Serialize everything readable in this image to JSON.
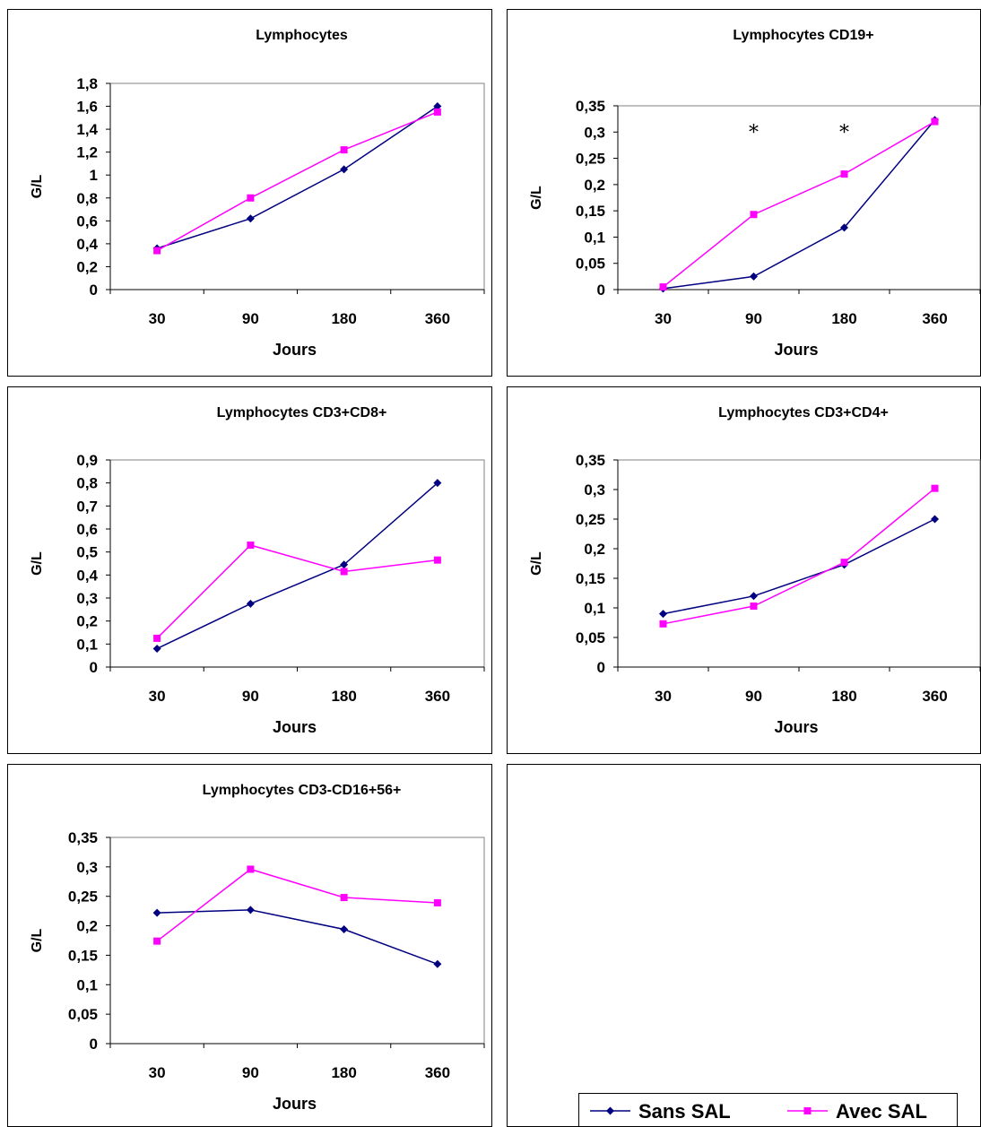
{
  "series_styles": [
    {
      "color": "#000080",
      "marker": "diamond"
    },
    {
      "color": "#ff00ff",
      "marker": "square"
    }
  ],
  "legend": {
    "entries": [
      "Sans SAL",
      "Avec SAL"
    ]
  },
  "chart_data": [
    {
      "type": "line",
      "title": "Lymphocytes",
      "xlabel": "Jours",
      "ylabel": "G/L",
      "categories": [
        "30",
        "90",
        "180",
        "360"
      ],
      "ylim": [
        0,
        1.8
      ],
      "yticks": [
        "0",
        "0,2",
        "0,4",
        "0,6",
        "0,8",
        "1",
        "1,2",
        "1,4",
        "1,6",
        "1,8"
      ],
      "series": [
        {
          "name": "Sans SAL",
          "values": [
            0.36,
            0.62,
            1.05,
            1.6
          ]
        },
        {
          "name": "Avec SAL",
          "values": [
            0.34,
            0.8,
            1.22,
            1.55
          ]
        }
      ],
      "annotations": []
    },
    {
      "type": "line",
      "title": "Lymphocytes CD19+",
      "xlabel": "Jours",
      "ylabel": "G/L",
      "categories": [
        "30",
        "90",
        "180",
        "360"
      ],
      "ylim": [
        0,
        0.35
      ],
      "yticks": [
        "0",
        "0,05",
        "0,1",
        "0,15",
        "0,2",
        "0,25",
        "0,3",
        "0,35"
      ],
      "series": [
        {
          "name": "Sans SAL",
          "values": [
            0.002,
            0.025,
            0.118,
            0.323
          ]
        },
        {
          "name": "Avec SAL",
          "values": [
            0.005,
            0.143,
            0.22,
            0.32
          ]
        }
      ],
      "annotations": [
        {
          "text": "*",
          "category": "90"
        },
        {
          "text": "*",
          "category": "180"
        }
      ]
    },
    {
      "type": "line",
      "title": "Lymphocytes CD3+CD8+",
      "xlabel": "Jours",
      "ylabel": "G/L",
      "categories": [
        "30",
        "90",
        "180",
        "360"
      ],
      "ylim": [
        0,
        0.9
      ],
      "yticks": [
        "0",
        "0,1",
        "0,2",
        "0,3",
        "0,4",
        "0,5",
        "0,6",
        "0,7",
        "0,8",
        "0,9"
      ],
      "series": [
        {
          "name": "Sans SAL",
          "values": [
            0.08,
            0.275,
            0.445,
            0.8
          ]
        },
        {
          "name": "Avec SAL",
          "values": [
            0.125,
            0.53,
            0.415,
            0.465
          ]
        }
      ],
      "annotations": []
    },
    {
      "type": "line",
      "title": "Lymphocytes CD3+CD4+",
      "xlabel": "Jours",
      "ylabel": "G/L",
      "categories": [
        "30",
        "90",
        "180",
        "360"
      ],
      "ylim": [
        0,
        0.35
      ],
      "yticks": [
        "0",
        "0,05",
        "0,1",
        "0,15",
        "0,2",
        "0,25",
        "0,3",
        "0,35"
      ],
      "series": [
        {
          "name": "Sans SAL",
          "values": [
            0.09,
            0.12,
            0.173,
            0.25
          ]
        },
        {
          "name": "Avec SAL",
          "values": [
            0.073,
            0.103,
            0.177,
            0.302
          ]
        }
      ],
      "annotations": []
    },
    {
      "type": "line",
      "title": "Lymphocytes CD3-CD16+56+",
      "xlabel": "Jours",
      "ylabel": "G/L",
      "categories": [
        "30",
        "90",
        "180",
        "360"
      ],
      "ylim": [
        0,
        0.35
      ],
      "yticks": [
        "0",
        "0,05",
        "0,1",
        "0,15",
        "0,2",
        "0,25",
        "0,3",
        "0,35"
      ],
      "series": [
        {
          "name": "Sans SAL",
          "values": [
            0.222,
            0.227,
            0.194,
            0.135
          ]
        },
        {
          "name": "Avec SAL",
          "values": [
            0.174,
            0.296,
            0.248,
            0.239
          ]
        }
      ],
      "annotations": []
    }
  ]
}
